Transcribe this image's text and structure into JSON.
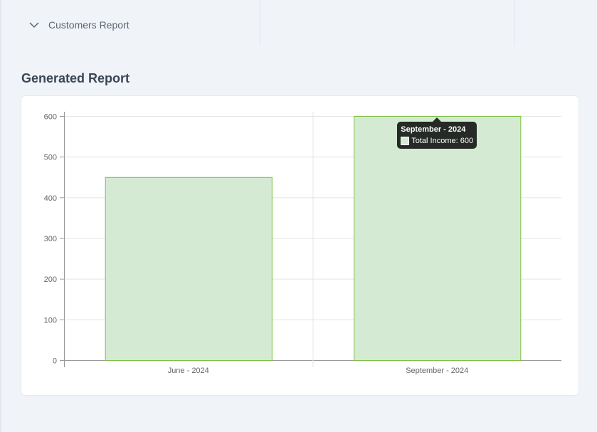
{
  "accordion": {
    "item_label": "Customers Report",
    "icon": "chevron-down-icon"
  },
  "section": {
    "title": "Generated Report"
  },
  "colors": {
    "page_bg": "#f0f3f7",
    "bar_fill": "#d4ead3",
    "bar_border": "#7cc142",
    "grid": "#e5e5e5",
    "axis": "#999999"
  },
  "chart_data": {
    "type": "bar",
    "categories": [
      "June - 2024",
      "September - 2024"
    ],
    "series": [
      {
        "name": "Total Income",
        "values": [
          450,
          600
        ]
      }
    ],
    "yticks": [
      0,
      100,
      200,
      300,
      400,
      500,
      600
    ],
    "ylim": [
      0,
      600
    ],
    "grid": true,
    "tooltip": {
      "title": "September - 2024",
      "label": "Total Income: 600"
    }
  }
}
